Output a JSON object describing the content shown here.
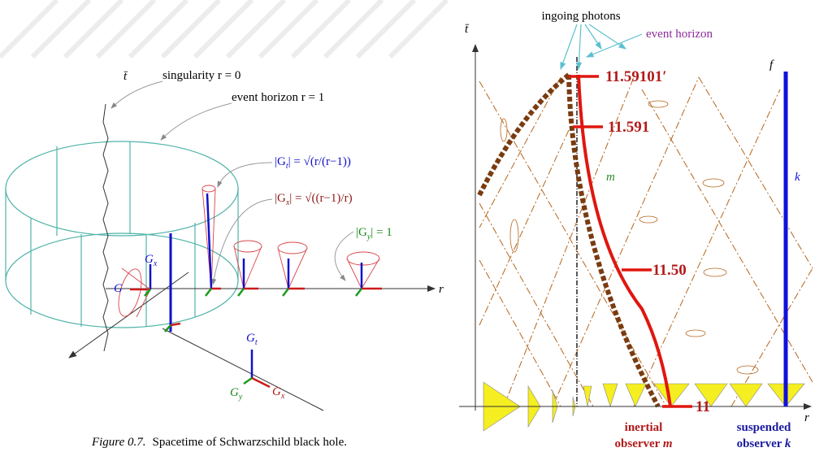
{
  "left_figure": {
    "time_axis": "t̄",
    "singularity_label": "singularity r = 0",
    "event_horizon_label": "event horizon r = 1",
    "gt_formula": {
      "lhs": "|G",
      "sub": "t",
      "rhs": "| = √(r/(r−1))"
    },
    "gx_formula": {
      "lhs": "|G",
      "sub": "x",
      "rhs": "| = √((r−1)/r)"
    },
    "gy_formula": {
      "lhs": "|G",
      "sub": "y",
      "rhs": "| = 1"
    },
    "cone_gx": {
      "base": "G",
      "sub": "x"
    },
    "cone_g": "G",
    "r_axis": "r",
    "frame_gt": {
      "base": "G",
      "sub": "t"
    },
    "frame_gy": {
      "base": "G",
      "sub": "y"
    },
    "frame_gx": {
      "base": "G",
      "sub": "x"
    },
    "caption": {
      "label": "Figure 0.7.",
      "text": "Spacetime of Schwarzschild black hole."
    }
  },
  "right_figure": {
    "photons_label": "ingoing photons",
    "event_horizon_label": "event horizon",
    "time_axis": "t̄",
    "proper_times": [
      "11.59101′",
      "11.591",
      "11.50",
      "11"
    ],
    "worldline_m": "m",
    "worldline_f": "f",
    "worldline_k": "k",
    "r_axis": "r",
    "inertial_observer": {
      "line1": "inertial",
      "line2": "observer",
      "name": "m"
    },
    "suspended_observer": {
      "line1": "suspended",
      "line2": "observer",
      "name": "k"
    }
  }
}
